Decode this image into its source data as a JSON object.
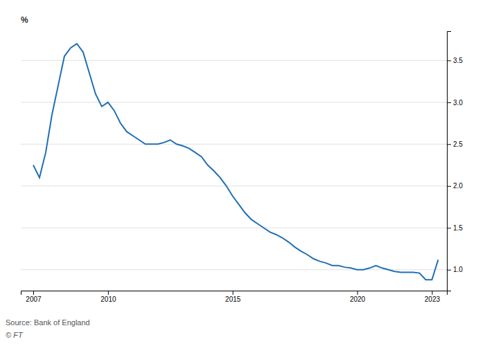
{
  "chart_data": {
    "type": "line",
    "y_label": "%",
    "annotations": [
      "Source: Bank of England",
      "© FT"
    ],
    "color": "#1f6fb4",
    "grid": true,
    "ylim": [
      0.75,
      3.85
    ],
    "yticks": [
      {
        "value": 1.0,
        "label": "1.0"
      },
      1.5,
      {
        "value": 2.0,
        "label": "2.0"
      },
      2.5,
      {
        "value": 3.0,
        "label": "3.0"
      },
      3.5
    ],
    "xlim": [
      2006.5,
      2023.6
    ],
    "xticks": [
      2007,
      2010,
      2015,
      2020,
      2023
    ],
    "x": [
      2007.0,
      2007.25,
      2007.5,
      2007.75,
      2008.0,
      2008.25,
      2008.5,
      2008.75,
      2009.0,
      2009.25,
      2009.5,
      2009.75,
      2010.0,
      2010.25,
      2010.5,
      2010.75,
      2011.0,
      2011.25,
      2011.5,
      2011.75,
      2012.0,
      2012.25,
      2012.5,
      2012.75,
      2013.0,
      2013.25,
      2013.5,
      2013.75,
      2014.0,
      2014.25,
      2014.5,
      2014.75,
      2015.0,
      2015.25,
      2015.5,
      2015.75,
      2016.0,
      2016.25,
      2016.5,
      2016.75,
      2017.0,
      2017.25,
      2017.5,
      2017.75,
      2018.0,
      2018.25,
      2018.5,
      2018.75,
      2019.0,
      2019.25,
      2019.5,
      2019.75,
      2020.0,
      2020.25,
      2020.5,
      2020.75,
      2021.0,
      2021.25,
      2021.5,
      2021.75,
      2022.0,
      2022.25,
      2022.5,
      2022.75,
      2023.0,
      2023.25
    ],
    "values": [
      2.25,
      2.1,
      2.4,
      2.85,
      3.2,
      3.55,
      3.65,
      3.7,
      3.6,
      3.35,
      3.1,
      2.95,
      3.0,
      2.9,
      2.75,
      2.65,
      2.6,
      2.55,
      2.5,
      2.5,
      2.5,
      2.52,
      2.55,
      2.5,
      2.48,
      2.45,
      2.4,
      2.35,
      2.25,
      2.18,
      2.1,
      2.0,
      1.88,
      1.78,
      1.68,
      1.6,
      1.55,
      1.5,
      1.45,
      1.42,
      1.38,
      1.33,
      1.27,
      1.22,
      1.18,
      1.13,
      1.1,
      1.08,
      1.05,
      1.05,
      1.03,
      1.02,
      1.0,
      1.0,
      1.02,
      1.05,
      1.02,
      1.0,
      0.98,
      0.97,
      0.97,
      0.97,
      0.96,
      0.88,
      0.88,
      1.12
    ]
  }
}
